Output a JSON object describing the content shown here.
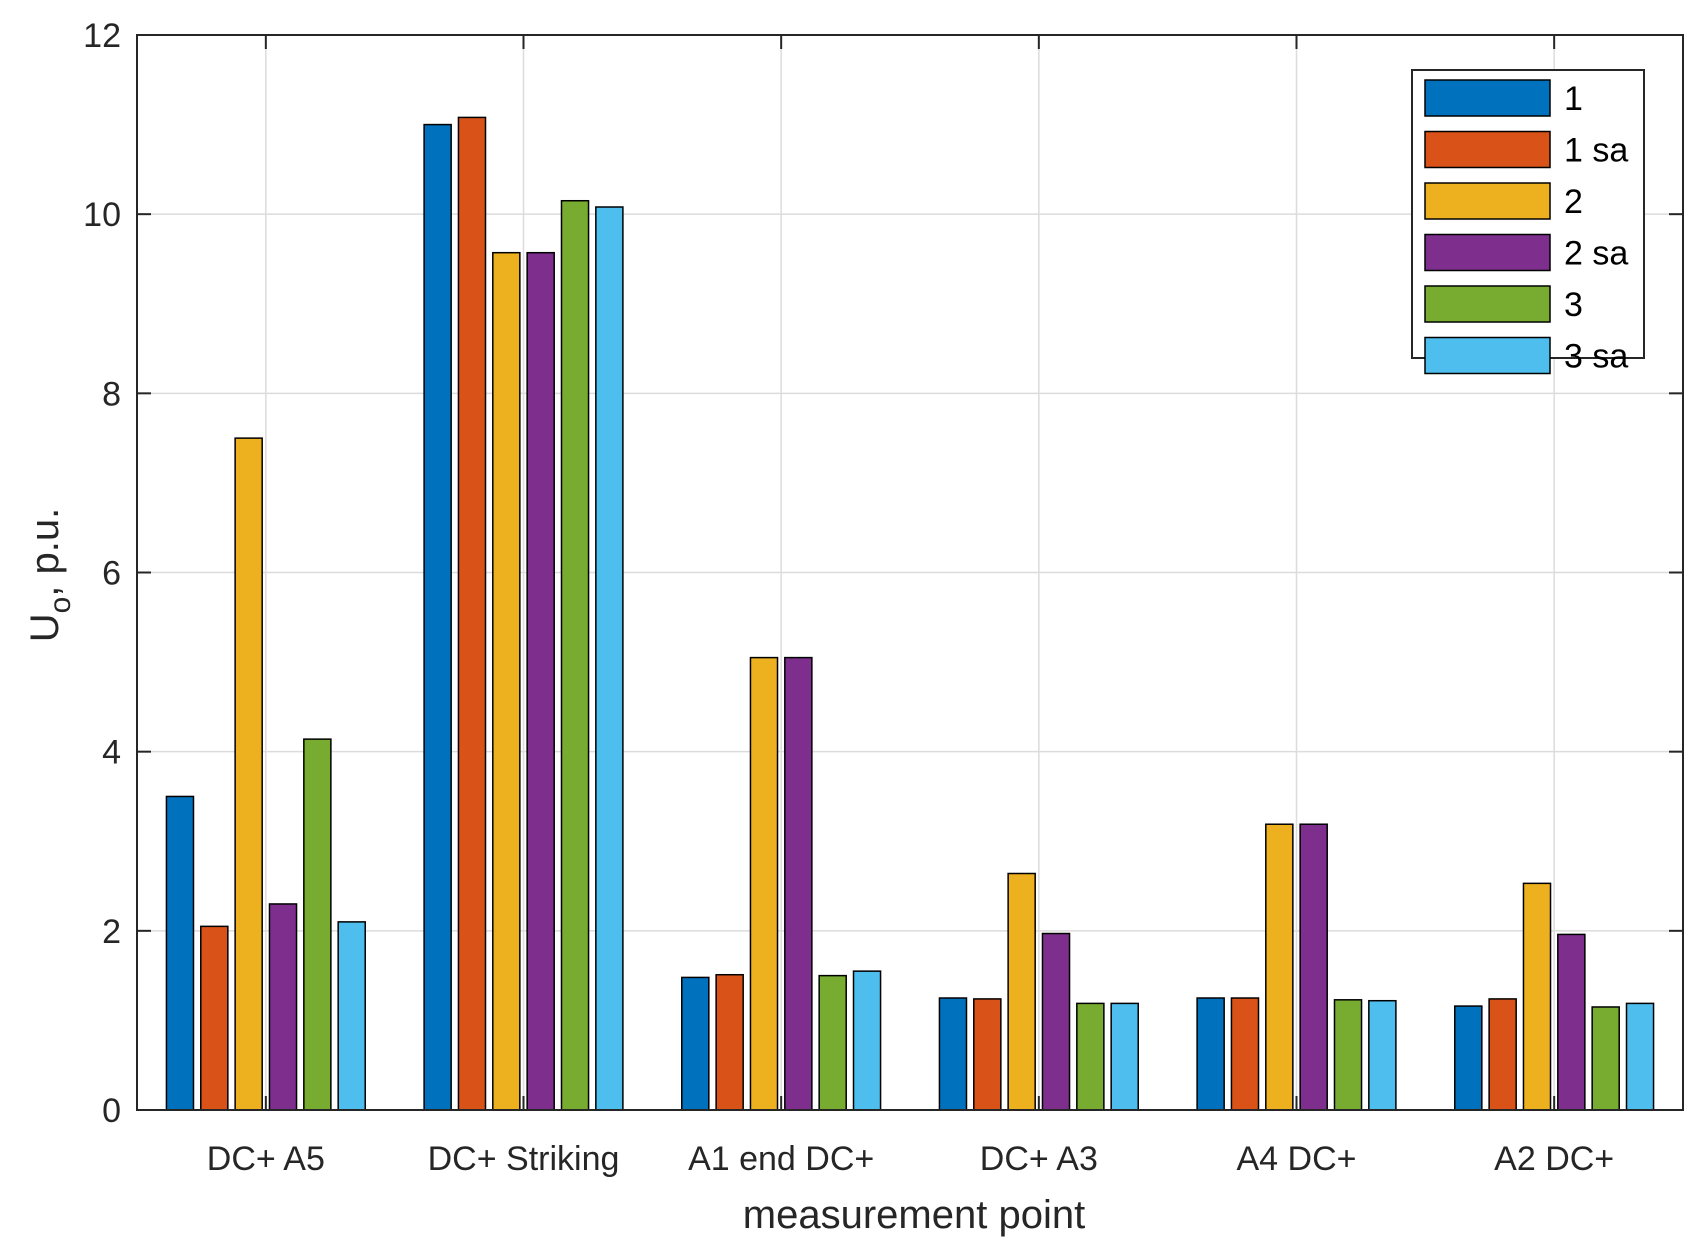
{
  "chart_data": {
    "type": "bar",
    "title": "",
    "xlabel": "measurement point",
    "ylabel_main": "U",
    "ylabel_sub": "o",
    "ylabel_rest": ", p.u.",
    "ylim": [
      0,
      12
    ],
    "yticks": [
      "0",
      "2",
      "4",
      "6",
      "8",
      "10",
      "12"
    ],
    "ytick_values": [
      0,
      2,
      4,
      6,
      8,
      10,
      12
    ],
    "grid": true,
    "legend_position": "top-right",
    "categories": [
      "DC+ A5",
      "DC+ Striking",
      "A1 end DC+",
      "DC+ A3",
      "A4 DC+",
      "A2 DC+"
    ],
    "series": [
      {
        "name": "1",
        "color": "#0072BD",
        "values": [
          3.5,
          11.0,
          1.48,
          1.25,
          1.25,
          1.16
        ]
      },
      {
        "name": "1 sa",
        "color": "#D95319",
        "values": [
          2.05,
          11.08,
          1.51,
          1.24,
          1.25,
          1.24
        ]
      },
      {
        "name": "2",
        "color": "#EDB120",
        "values": [
          7.5,
          9.57,
          5.05,
          2.64,
          3.19,
          2.53
        ]
      },
      {
        "name": "2 sa",
        "color": "#7E2F8E",
        "values": [
          2.3,
          9.57,
          5.05,
          1.97,
          3.19,
          1.96
        ]
      },
      {
        "name": "3",
        "color": "#77AC30",
        "values": [
          4.14,
          10.15,
          1.5,
          1.19,
          1.23,
          1.15
        ]
      },
      {
        "name": "3 sa",
        "color": "#4DBEEE",
        "values": [
          2.1,
          10.08,
          1.55,
          1.19,
          1.22,
          1.19
        ]
      }
    ]
  }
}
